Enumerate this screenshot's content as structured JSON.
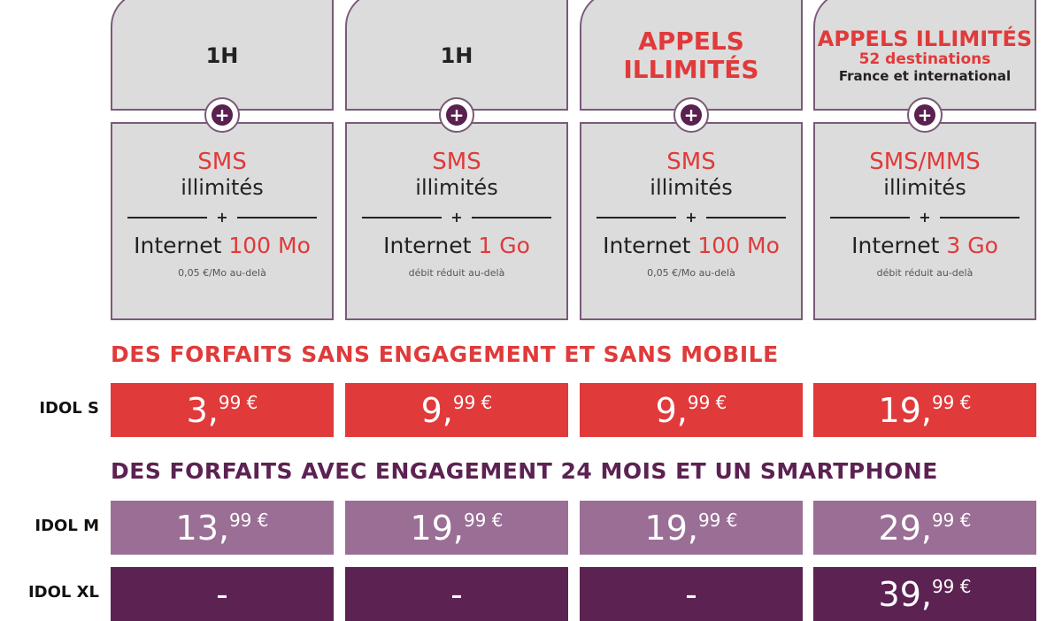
{
  "plans": [
    {
      "top": {
        "type": "simple",
        "text": "1H"
      },
      "sms": "SMS",
      "sms_sub": "illimités",
      "internet_label": "Internet",
      "internet_amount": "100 Mo",
      "note": "0,05 €/Mo au-delà"
    },
    {
      "top": {
        "type": "simple",
        "text": "1H"
      },
      "sms": "SMS",
      "sms_sub": "illimités",
      "internet_label": "Internet",
      "internet_amount": "1 Go",
      "note": "débit réduit au-delà"
    },
    {
      "top": {
        "type": "appels",
        "line1": "APPELS",
        "line2": "ILLIMITÉS"
      },
      "sms": "SMS",
      "sms_sub": "illimités",
      "internet_label": "Internet",
      "internet_amount": "100 Mo",
      "note": "0,05 €/Mo au-delà"
    },
    {
      "top": {
        "type": "appels2",
        "line1": "APPELS ILLIMITÉS",
        "line2": "52 destinations",
        "line3": "France et international"
      },
      "sms": "SMS/MMS",
      "sms_sub": "illimités",
      "internet_label": "Internet",
      "internet_amount": "3 Go",
      "note": "débit réduit au-delà"
    }
  ],
  "plus_symbol": "+",
  "heading_sans": "DES FORFAITS SANS ENGAGEMENT ET SANS MOBILE",
  "heading_avec": "DES FORFAITS AVEC ENGAGEMENT 24 MOIS ET UN SMARTPHONE",
  "rows": [
    {
      "label": "IDOL S",
      "color": "#e03a3a",
      "prices": [
        [
          "3,",
          "99 €"
        ],
        [
          "9,",
          "99 €"
        ],
        [
          "9,",
          "99 €"
        ],
        [
          "19,",
          "99 €"
        ]
      ]
    },
    {
      "label": "IDOL M",
      "color": "#9a6e95",
      "prices": [
        [
          "13,",
          "99 €"
        ],
        [
          "19,",
          "99 €"
        ],
        [
          "19,",
          "99 €"
        ],
        [
          "29,",
          "99 €"
        ]
      ]
    },
    {
      "label": "IDOL XL",
      "color": "#5c2252",
      "prices": [
        [
          "-",
          ""
        ],
        [
          "-",
          ""
        ],
        [
          "-",
          ""
        ],
        [
          "39,",
          "99 €"
        ]
      ]
    }
  ],
  "colors": {
    "red": "#e03a3a",
    "purple_light": "#9a6e95",
    "purple_dark": "#5c2252"
  }
}
